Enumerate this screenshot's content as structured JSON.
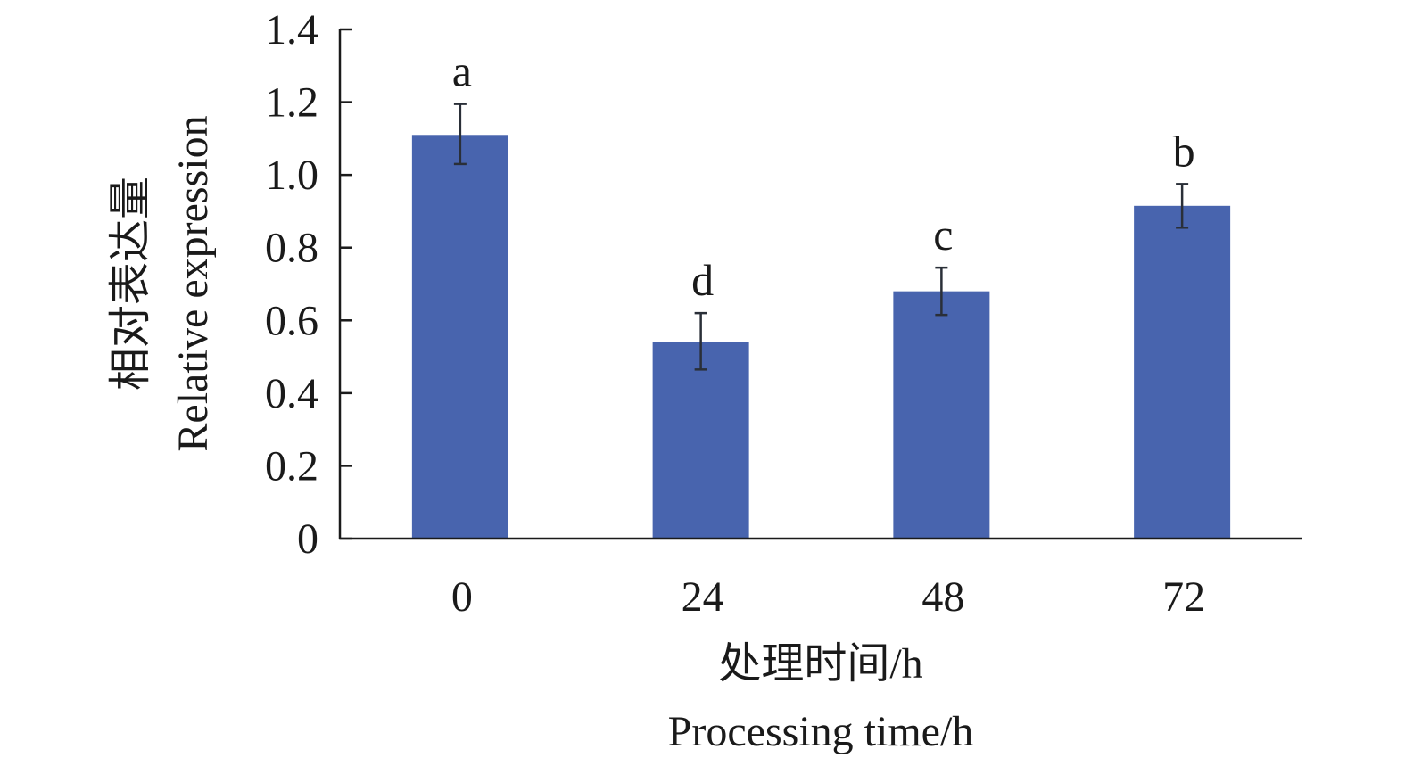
{
  "chart_data": {
    "type": "bar",
    "categories": [
      "0",
      "24",
      "48",
      "72"
    ],
    "values": [
      1.11,
      0.54,
      0.68,
      0.915
    ],
    "error_upper": [
      1.195,
      0.62,
      0.745,
      0.975
    ],
    "error_lower": [
      1.03,
      0.465,
      0.615,
      0.855
    ],
    "significance_letters": [
      "a",
      "d",
      "c",
      "b"
    ],
    "ylim": [
      0,
      1.4
    ],
    "yticks": [
      "0",
      "0.2",
      "0.4",
      "0.6",
      "0.8",
      "1.0",
      "1.2",
      "1.4"
    ],
    "ylabel_cn": "相对表达量",
    "ylabel_en": "Relative expression",
    "xlabel_cn": "处理时间/h",
    "xlabel_en": "Processing time/h",
    "grid": false,
    "bar_color": "#4864ae",
    "errorbar_color": "#2a2f38"
  }
}
